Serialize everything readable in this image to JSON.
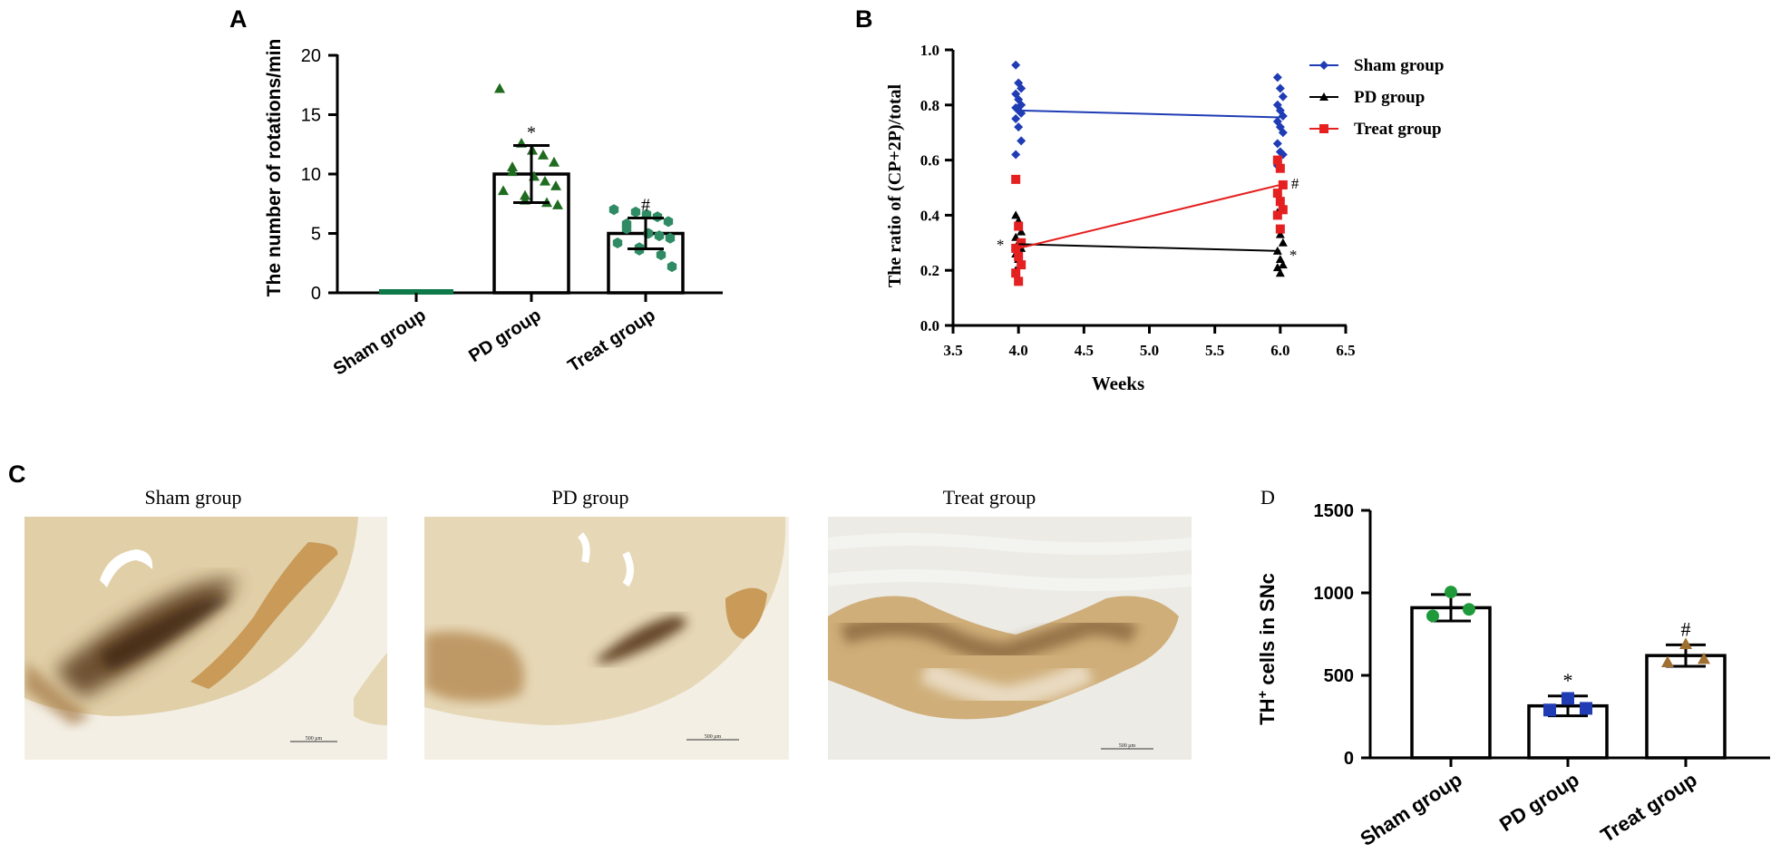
{
  "panels": {
    "a": "A",
    "b": "B",
    "c": "C",
    "d": "D"
  },
  "chart_data": [
    {
      "id": "A",
      "type": "bar",
      "title": "",
      "ylabel": "The number of rotations/min",
      "xlabel": "",
      "ylim": [
        0,
        20
      ],
      "yticks": [
        "0",
        "5",
        "10",
        "15",
        "20"
      ],
      "categories": [
        "Sham group",
        "PD group",
        "Treat group"
      ],
      "values": [
        0,
        10,
        5
      ],
      "errors": [
        0,
        2.4,
        1.3
      ],
      "annotations": [
        "",
        "*",
        "#"
      ],
      "colors": {
        "sham": "#0e7a4a",
        "pd": "#1f6b1f",
        "treat": "#2e8b63"
      },
      "points": {
        "pd": [
          17.2,
          12.6,
          12.0,
          11.6,
          11.0,
          10.6,
          10.2,
          9.8,
          9.4,
          9.0,
          8.6,
          8.2,
          7.8,
          7.6,
          7.4
        ],
        "treat": [
          7.0,
          6.8,
          6.6,
          6.4,
          6.0,
          5.8,
          5.4,
          5.0,
          4.8,
          4.6,
          4.2,
          3.8,
          3.6,
          3.2,
          2.2
        ]
      }
    },
    {
      "id": "B",
      "type": "line",
      "ylabel": "The ratio of (CP+2P)/total",
      "xlabel": "Weeks",
      "xlim": [
        3.5,
        6.5
      ],
      "ylim": [
        0,
        1.0
      ],
      "xticks": [
        "3.5",
        "4.0",
        "4.5",
        "5.0",
        "5.5",
        "6.0",
        "6.5"
      ],
      "yticks": [
        "0.0",
        "0.2",
        "0.4",
        "0.6",
        "0.8",
        "1.0"
      ],
      "x": [
        4.0,
        6.0
      ],
      "series": [
        {
          "name": "Sham group",
          "color": "#1f3cb5",
          "marker": "diamond",
          "values": [
            0.78,
            0.755
          ],
          "points": [
            [
              0.945,
              0.88,
              0.86,
              0.84,
              0.82,
              0.8,
              0.79,
              0.78,
              0.77,
              0.75,
              0.72,
              0.67,
              0.62
            ],
            [
              0.9,
              0.86,
              0.83,
              0.8,
              0.78,
              0.76,
              0.74,
              0.72,
              0.7,
              0.66,
              0.63,
              0.62,
              0.58
            ]
          ]
        },
        {
          "name": "PD group",
          "color": "#000000",
          "marker": "triangle",
          "values": [
            0.295,
            0.27
          ],
          "points": [
            [
              0.4,
              0.38,
              0.34,
              0.32,
              0.3,
              0.28,
              0.26,
              0.24,
              0.22,
              0.2
            ],
            [
              0.41,
              0.33,
              0.3,
              0.27,
              0.24,
              0.22,
              0.21,
              0.19
            ]
          ]
        },
        {
          "name": "Treat group",
          "color": "#e52020",
          "marker": "square",
          "values": [
            0.28,
            0.51
          ],
          "points": [
            [
              0.53,
              0.36,
              0.3,
              0.28,
              0.25,
              0.22,
              0.19,
              0.16
            ],
            [
              0.6,
              0.57,
              0.51,
              0.48,
              0.45,
              0.42,
              0.4,
              0.35
            ]
          ]
        }
      ],
      "annotations": {
        "week4_pd": "*",
        "week6_pd": "*",
        "week6_treat": "#"
      }
    },
    {
      "id": "D",
      "type": "bar",
      "ylabel": "TH",
      "ylabel_sup": "+",
      "ylabel_rest": " cells in SNc",
      "ylim": [
        0,
        1500
      ],
      "yticks": [
        "0",
        "500",
        "1000",
        "1500"
      ],
      "categories": [
        "Sham group",
        "PD group",
        "Treat group"
      ],
      "values": [
        910,
        315,
        620
      ],
      "errors": [
        80,
        60,
        65
      ],
      "annotations": [
        "",
        "*",
        "#"
      ],
      "colors": {
        "sham": "#1f9a3a",
        "pd": "#1f3cb5",
        "treat": "#a07030"
      },
      "points": {
        "sham": [
          1005,
          900,
          860
        ],
        "pd": [
          360,
          300,
          290
        ],
        "treat": [
          690,
          600,
          580
        ]
      }
    }
  ],
  "micrographs": {
    "titles": [
      "Sham group",
      "PD group",
      "Treat group"
    ],
    "scale_label": "500 μm"
  }
}
